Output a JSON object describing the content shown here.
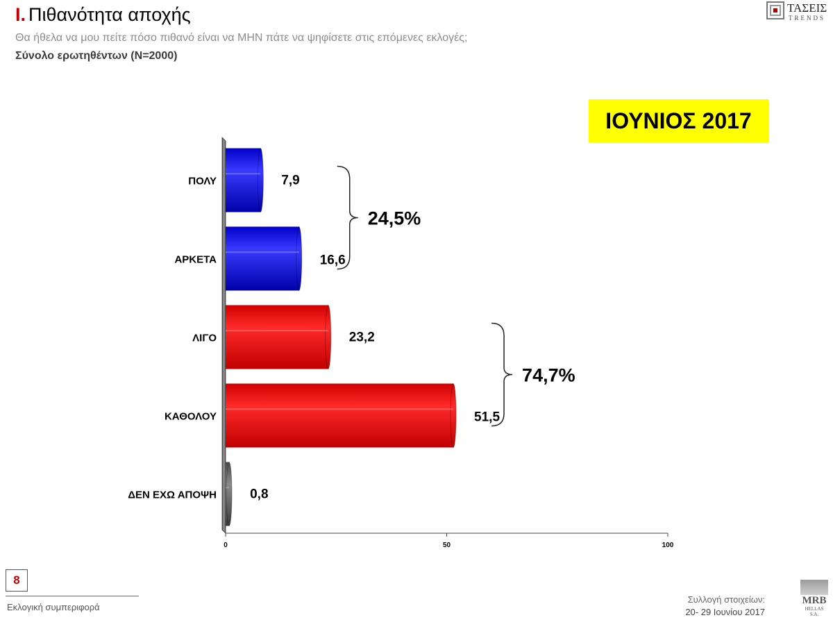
{
  "header": {
    "number": "I.",
    "title": "Πιθανότητα αποχής",
    "subtitle": "Θα ήθελα να μου πείτε πόσο πιθανό είναι να ΜΗΝ πάτε να ψηφίσετε στις επόμενες εκλογές;",
    "base": "Σύνολο ερωτηθέντων (N=2000)"
  },
  "logo": {
    "name": "ΤΑΣΕΙΣ",
    "sub": "TRENDS"
  },
  "period": "ΙΟΥΝΙΟΣ 2017",
  "chart_data": {
    "type": "bar",
    "orientation": "horizontal",
    "categories": [
      "ΠΟΛΥ",
      "ΑΡΚΕΤΑ",
      "ΛΙΓΟ",
      "ΚΑΘΟΛΟΥ",
      "ΔΕΝ ΕΧΩ ΑΠΟΨΗ"
    ],
    "values": [
      7.9,
      16.6,
      23.2,
      51.5,
      0.8
    ],
    "value_labels": [
      "7,9",
      "16,6",
      "23,2",
      "51,5",
      "0,8"
    ],
    "colors": [
      "#2020e0",
      "#2020e0",
      "#e01010",
      "#e01010",
      "#606060"
    ],
    "xlim": [
      0,
      100
    ],
    "xticks": [
      0,
      50,
      100
    ],
    "grid": false,
    "groups": [
      {
        "label": "24,5%",
        "from": 0,
        "to": 1
      },
      {
        "label": "74,7%",
        "from": 2,
        "to": 3
      }
    ]
  },
  "footer": {
    "page": "8",
    "section": "Εκλογική συμπεριφορά",
    "collection_label": "Συλλογή στοιχείων:",
    "collection_dates": "20- 29 Ιουνίου 2017",
    "brand": "MRB",
    "brand_sub": "HELLAS S.A."
  }
}
